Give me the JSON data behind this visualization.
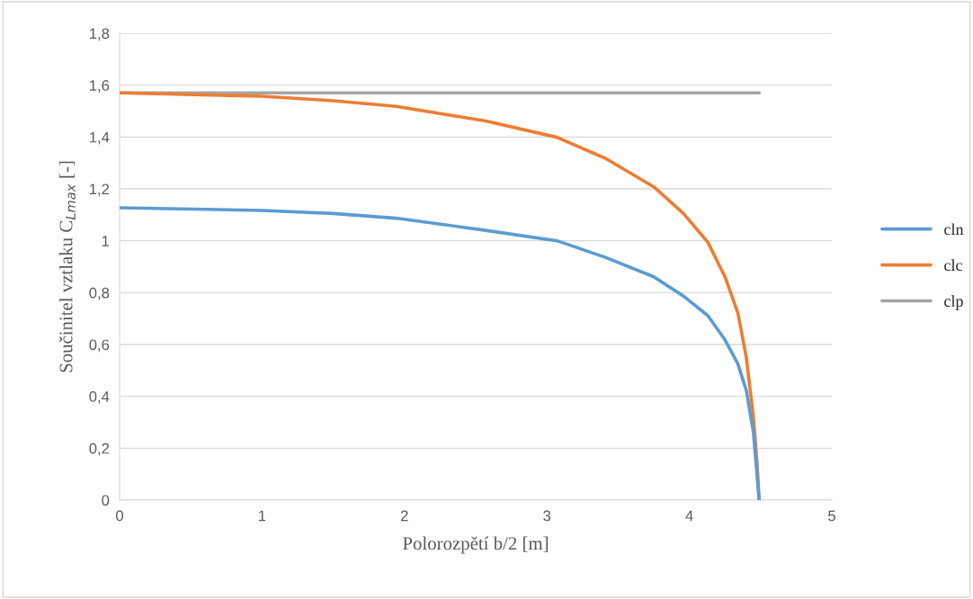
{
  "chart_data": {
    "type": "line",
    "xlabel": "Polorozpětí b/2 [m]",
    "ylabel": "Součinitel vztlaku C$_{Lmax}$ [-]",
    "xlim": [
      0,
      5
    ],
    "xticks": [
      0,
      1,
      2,
      3,
      4,
      5
    ],
    "ylim": [
      0,
      1.8
    ],
    "yticks": [
      0,
      {
        "value": 0.2,
        "label": "0,2"
      },
      {
        "value": 0.4,
        "label": "0,4"
      },
      {
        "value": 0.6,
        "label": "0,6"
      },
      {
        "value": 0.8,
        "label": "0,8"
      },
      1,
      {
        "value": 1.2,
        "label": "1,2"
      },
      {
        "value": 1.4,
        "label": "1,4"
      },
      {
        "value": 1.6,
        "label": "1,6"
      },
      {
        "value": 1.8,
        "label": "1,8"
      }
    ],
    "grid": "y",
    "legend": "right",
    "marker": "none",
    "line_style": "solid",
    "series": [
      {
        "name": "cln",
        "color": "#5b9bd5",
        "x": [
          0,
          1,
          1.5,
          1.94,
          2.57,
          3.07,
          3.41,
          3.75,
          3.96,
          4.13,
          4.25,
          4.34,
          4.4,
          4.45,
          4.49
        ],
        "values": [
          1.127,
          1.117,
          1.105,
          1.087,
          1.04,
          1.0,
          0.936,
          0.861,
          0.786,
          0.711,
          0.618,
          0.526,
          0.422,
          0.26,
          0
        ]
      },
      {
        "name": "clc",
        "color": "#ed7d31",
        "x": [
          0,
          1,
          1.5,
          1.94,
          2.57,
          3.07,
          3.41,
          3.75,
          3.96,
          4.13,
          4.25,
          4.34,
          4.4,
          4.45,
          4.475,
          4.49
        ],
        "values": [
          1.57,
          1.557,
          1.54,
          1.518,
          1.462,
          1.399,
          1.318,
          1.208,
          1.104,
          0.994,
          0.861,
          0.723,
          0.549,
          0.318,
          0.145,
          0
        ]
      },
      {
        "name": "clp",
        "color": "#a5a5a5",
        "x": [
          0,
          4.49
        ],
        "values": [
          1.57,
          1.57
        ]
      }
    ]
  }
}
